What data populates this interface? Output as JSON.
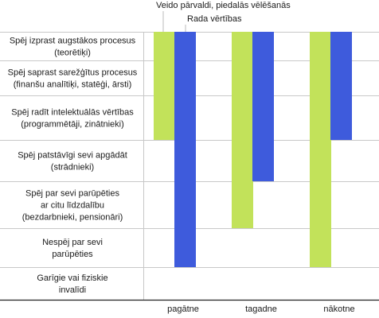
{
  "chart_data": {
    "type": "bar",
    "title": "",
    "xlabel": "",
    "ylabel": "",
    "legend_position": "top",
    "legend": [
      {
        "name": "Veido pārvaldi, piedalās vēlēšanās",
        "color": "#c2e25a"
      },
      {
        "name": "Rada vērtības",
        "color": "#3e5bdc"
      }
    ],
    "categories": [
      "pagātne",
      "tagadne",
      "nākotne"
    ],
    "rows": [
      {
        "label": [
          "Spēj izprast augstākos procesus",
          "(teorētiķi)"
        ]
      },
      {
        "label": [
          "Spēj saprast sarežģītus procesus",
          "(finanšu analītiķi, statēģi, ārsti)"
        ]
      },
      {
        "label": [
          "Spēj radīt intelektuālās vērtības",
          "(programmētāji, zinātnieki)"
        ]
      },
      {
        "label": [
          "Spēj patstāvīgi sevi apgādāt",
          "(strādnieki)"
        ]
      },
      {
        "label": [
          "Spēj par sevi parūpēties",
          "ar citu līdzdalību",
          "(bezdarbnieki, pensionāri)"
        ]
      },
      {
        "label": [
          "Nespēj par sevi",
          "parūpēties"
        ]
      },
      {
        "label": [
          "Garīgie vai fiziskie",
          "invalīdi"
        ]
      }
    ],
    "row_scale": [
      0,
      7
    ],
    "series": [
      {
        "name": "Veido pārvaldi, piedalās vēlēšanās",
        "color": "#c2e25a",
        "from": [
          0,
          0,
          0
        ],
        "to": [
          3,
          5,
          6
        ]
      },
      {
        "name": "Rada vērtības",
        "color": "#3e5bdc",
        "from": [
          0,
          0,
          0
        ],
        "to": [
          6,
          4,
          3
        ]
      }
    ]
  }
}
